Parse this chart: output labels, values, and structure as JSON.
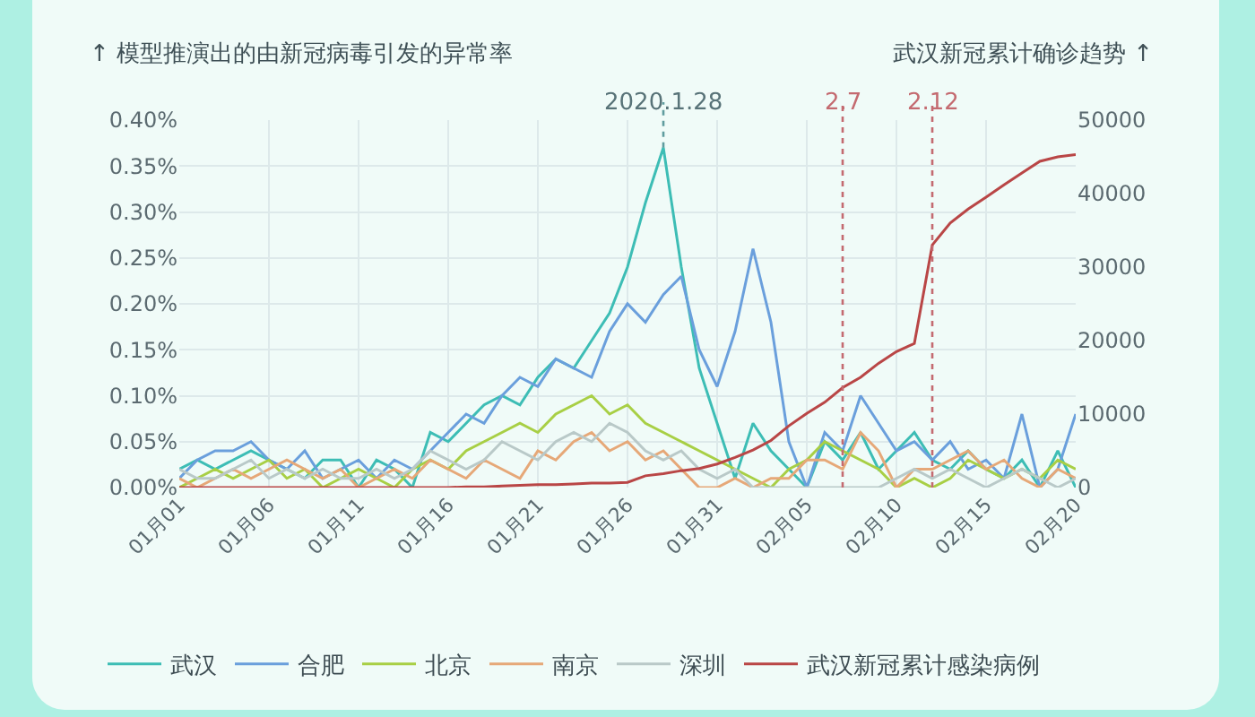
{
  "chart_data": {
    "type": "line",
    "ylabel": "↑ 模型推演出的由新冠病毒引发的异常率",
    "y2label": "武汉新冠累计确诊趋势 ↑",
    "x": [
      "2020-01-01",
      "2020-01-02",
      "2020-01-03",
      "2020-01-04",
      "2020-01-05",
      "2020-01-06",
      "2020-01-07",
      "2020-01-08",
      "2020-01-09",
      "2020-01-10",
      "2020-01-11",
      "2020-01-12",
      "2020-01-13",
      "2020-01-14",
      "2020-01-15",
      "2020-01-16",
      "2020-01-17",
      "2020-01-18",
      "2020-01-19",
      "2020-01-20",
      "2020-01-21",
      "2020-01-22",
      "2020-01-23",
      "2020-01-24",
      "2020-01-25",
      "2020-01-26",
      "2020-01-27",
      "2020-01-28",
      "2020-01-29",
      "2020-01-30",
      "2020-01-31",
      "2020-02-01",
      "2020-02-02",
      "2020-02-03",
      "2020-02-04",
      "2020-02-05",
      "2020-02-06",
      "2020-02-07",
      "2020-02-08",
      "2020-02-09",
      "2020-02-10",
      "2020-02-11",
      "2020-02-12",
      "2020-02-13",
      "2020-02-14",
      "2020-02-15",
      "2020-02-16",
      "2020-02-17",
      "2020-02-18",
      "2020-02-19",
      "2020-02-20"
    ],
    "series": [
      {
        "name": "武汉",
        "color": "#3dbdb5",
        "values": [
          0.02,
          0.03,
          0.02,
          0.03,
          0.04,
          0.03,
          0.02,
          0.01,
          0.03,
          0.03,
          0.0,
          0.03,
          0.02,
          0.0,
          0.06,
          0.05,
          0.07,
          0.09,
          0.1,
          0.09,
          0.12,
          0.14,
          0.13,
          0.16,
          0.19,
          0.24,
          0.31,
          0.37,
          0.24,
          0.13,
          0.07,
          0.01,
          0.07,
          0.04,
          0.02,
          0.0,
          0.05,
          0.03,
          0.06,
          0.02,
          0.04,
          0.06,
          0.03,
          0.02,
          0.04,
          0.02,
          0.01,
          0.03,
          0.0,
          0.04,
          0.0
        ]
      },
      {
        "name": "合肥",
        "color": "#6a9fdc",
        "values": [
          0.01,
          0.03,
          0.04,
          0.04,
          0.05,
          0.03,
          0.02,
          0.04,
          0.01,
          0.02,
          0.03,
          0.01,
          0.03,
          0.02,
          0.04,
          0.06,
          0.08,
          0.07,
          0.1,
          0.12,
          0.11,
          0.14,
          0.13,
          0.12,
          0.17,
          0.2,
          0.18,
          0.21,
          0.23,
          0.15,
          0.11,
          0.17,
          0.26,
          0.18,
          0.05,
          0.0,
          0.06,
          0.04,
          0.1,
          0.07,
          0.04,
          0.05,
          0.03,
          0.05,
          0.02,
          0.03,
          0.01,
          0.08,
          0.0,
          0.02,
          0.08
        ]
      },
      {
        "name": "北京",
        "color": "#a8cf45",
        "values": [
          0.0,
          0.01,
          0.02,
          0.01,
          0.02,
          0.03,
          0.01,
          0.02,
          0.0,
          0.01,
          0.02,
          0.01,
          0.0,
          0.02,
          0.03,
          0.02,
          0.04,
          0.05,
          0.06,
          0.07,
          0.06,
          0.08,
          0.09,
          0.1,
          0.08,
          0.09,
          0.07,
          0.06,
          0.05,
          0.04,
          0.03,
          0.02,
          0.01,
          0.0,
          0.02,
          0.03,
          0.05,
          0.04,
          0.03,
          0.02,
          0.0,
          0.01,
          0.0,
          0.01,
          0.03,
          0.02,
          0.01,
          0.02,
          0.01,
          0.03,
          0.02
        ]
      },
      {
        "name": "南京",
        "color": "#e6a878",
        "values": [
          0.01,
          0.0,
          0.01,
          0.02,
          0.01,
          0.02,
          0.03,
          0.02,
          0.01,
          0.02,
          0.0,
          0.01,
          0.02,
          0.01,
          0.03,
          0.02,
          0.01,
          0.03,
          0.02,
          0.01,
          0.04,
          0.03,
          0.05,
          0.06,
          0.04,
          0.05,
          0.03,
          0.04,
          0.02,
          0.0,
          0.0,
          0.01,
          0.0,
          0.01,
          0.01,
          0.03,
          0.03,
          0.02,
          0.06,
          0.04,
          0.0,
          0.02,
          0.02,
          0.03,
          0.04,
          0.02,
          0.03,
          0.01,
          0.0,
          0.02,
          0.01
        ]
      },
      {
        "name": "深圳",
        "color": "#b9c9c8",
        "values": [
          0.02,
          0.01,
          0.01,
          0.02,
          0.03,
          0.01,
          0.02,
          0.01,
          0.02,
          0.01,
          0.01,
          0.02,
          0.01,
          0.02,
          0.04,
          0.03,
          0.02,
          0.03,
          0.05,
          0.04,
          0.03,
          0.05,
          0.06,
          0.05,
          0.07,
          0.06,
          0.04,
          0.03,
          0.04,
          0.02,
          0.01,
          0.02,
          0.0,
          0.0,
          0.0,
          0.0,
          0.0,
          0.0,
          0.0,
          0.0,
          0.01,
          0.02,
          0.01,
          0.02,
          0.01,
          0.0,
          0.01,
          0.02,
          0.01,
          0.0,
          0.01
        ]
      },
      {
        "name": "武汉新冠累计感染病例",
        "color": "#b94646",
        "axis": "y2",
        "values": [
          0,
          0,
          0,
          0,
          0,
          0,
          0,
          0,
          0,
          0,
          0,
          0,
          0,
          0,
          0,
          0,
          100,
          100,
          200,
          300,
          400,
          400,
          500,
          600,
          600,
          700,
          1600,
          1900,
          2300,
          2600,
          3200,
          4100,
          5100,
          6400,
          8400,
          10100,
          11600,
          13600,
          15000,
          16900,
          18500,
          19600,
          33000,
          36000,
          37900,
          39500,
          41200,
          42800,
          44400,
          45000,
          45300
        ]
      }
    ],
    "xlim": [
      "2020-01-01",
      "2020-02-20"
    ],
    "xticks": [
      {
        "value": "2020-01-01",
        "label": "01月01"
      },
      {
        "value": "2020-01-06",
        "label": "01月06"
      },
      {
        "value": "2020-01-11",
        "label": "01月11"
      },
      {
        "value": "2020-01-16",
        "label": "01月16"
      },
      {
        "value": "2020-01-21",
        "label": "01月21"
      },
      {
        "value": "2020-01-26",
        "label": "01月26"
      },
      {
        "value": "2020-01-31",
        "label": "01月31"
      },
      {
        "value": "2020-02-05",
        "label": "02月05"
      },
      {
        "value": "2020-02-10",
        "label": "02月10"
      },
      {
        "value": "2020-02-15",
        "label": "02月15"
      },
      {
        "value": "2020-02-20",
        "label": "02月20"
      }
    ],
    "ylim": [
      0,
      0.4
    ],
    "yticks": [
      {
        "value": 0,
        "label": "0.00%"
      },
      {
        "value": 0.05,
        "label": "0.05%"
      },
      {
        "value": 0.1,
        "label": "0.10%"
      },
      {
        "value": 0.15,
        "label": "0.15%"
      },
      {
        "value": 0.2,
        "label": "0.20%"
      },
      {
        "value": 0.25,
        "label": "0.25%"
      },
      {
        "value": 0.3,
        "label": "0.30%"
      },
      {
        "value": 0.35,
        "label": "0.35%"
      },
      {
        "value": 0.4,
        "label": "0.40%"
      }
    ],
    "y2lim": [
      0,
      50000
    ],
    "y2ticks": [
      0,
      10000,
      20000,
      30000,
      40000,
      50000
    ],
    "ref_lines": [
      {
        "axis": "x",
        "value": "2020-02-07",
        "label": "2.7",
        "color": "#c46a70",
        "line_style": "dotted"
      },
      {
        "axis": "x",
        "value": "2020-02-12",
        "label": "2.12",
        "color": "#c46a70",
        "line_style": "dotted"
      }
    ],
    "annotations": [
      {
        "text": "2020.1.28",
        "x": "2020-01-28",
        "y": 0.37
      }
    ],
    "grid": true,
    "legend": "bottom",
    "marker": "none",
    "line_style": "solid"
  }
}
